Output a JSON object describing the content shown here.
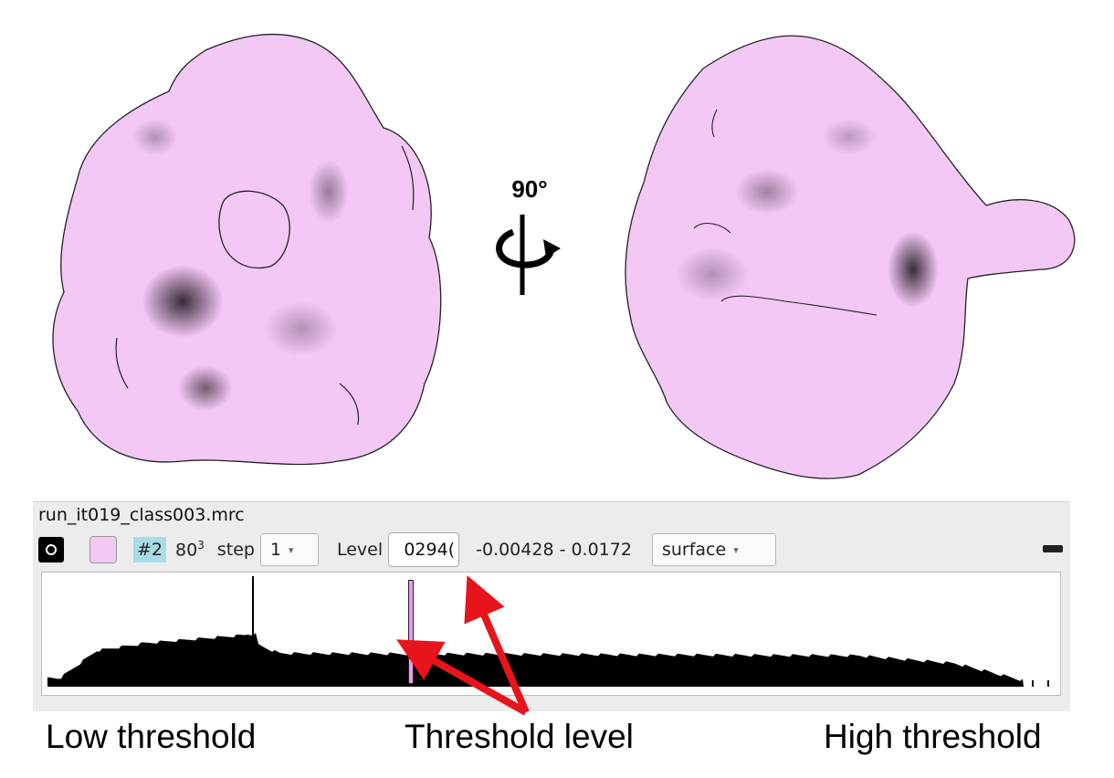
{
  "viewer": {
    "rotation_label": "90°",
    "surface_color": "#f3c8f5"
  },
  "volume_panel": {
    "filename": "run_it019_class003.mrc",
    "model_id": "#2",
    "size": "80",
    "size_exponent": "3",
    "step_label": "step",
    "step_value": "1",
    "level_label": "Level",
    "level_value": ")0294",
    "range_text": "-0.00428 - 0.0172",
    "style_value": "surface",
    "swatch_color": "#f3c8f5",
    "threshold_level_fraction": 0.36,
    "data_range": [
      -0.00428,
      0.0172
    ]
  },
  "captions": {
    "low": "Low threshold",
    "threshold": "Threshold level",
    "high": "High threshold"
  },
  "icons": [
    "display-toggle-icon",
    "rotation-axis-icon",
    "close-panel-icon"
  ],
  "accent_colors": {
    "annotation_arrow": "#e8141b",
    "model_id_highlight": "#a8dce8"
  }
}
